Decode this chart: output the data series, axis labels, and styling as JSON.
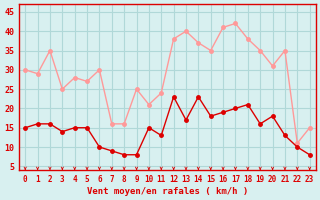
{
  "hours": [
    0,
    1,
    2,
    3,
    4,
    5,
    6,
    7,
    8,
    9,
    10,
    11,
    12,
    13,
    14,
    15,
    16,
    17,
    18,
    19,
    20,
    21,
    22,
    23
  ],
  "wind_avg": [
    15,
    16,
    16,
    14,
    15,
    15,
    10,
    9,
    8,
    8,
    15,
    13,
    23,
    17,
    23,
    18,
    19,
    20,
    21,
    16,
    18,
    13,
    10,
    8
  ],
  "wind_gust": [
    30,
    29,
    35,
    25,
    28,
    27,
    30,
    16,
    16,
    25,
    21,
    24,
    38,
    40,
    37,
    35,
    41,
    42,
    38,
    35,
    31,
    35,
    11,
    15
  ],
  "bg_color": "#d8f0f0",
  "grid_color": "#b0d8d8",
  "avg_color": "#dd0000",
  "gust_color": "#ff9999",
  "xlabel": "Vent moyen/en rafales ( km/h )",
  "ylabel_ticks": [
    5,
    10,
    15,
    20,
    25,
    30,
    35,
    40,
    45
  ],
  "ylim": [
    4,
    47
  ],
  "xlim": [
    -0.5,
    23.5
  ],
  "axis_color": "#dd0000",
  "tick_color": "#dd0000",
  "xlabel_color": "#dd0000"
}
